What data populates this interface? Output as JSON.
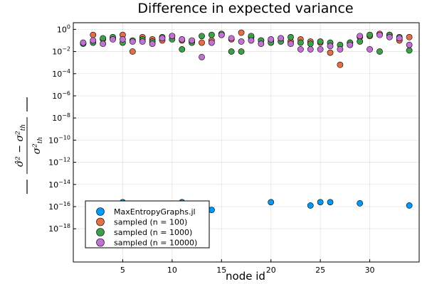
{
  "chart_data": {
    "type": "scatter",
    "title": "Difference in expected variance",
    "xlabel": "node id",
    "ylabel": "",
    "yscale": "log10",
    "xlim": [
      0,
      35
    ],
    "ylim_exp": [
      -21,
      0.6
    ],
    "grid": true,
    "legend_position": "bottom-left",
    "x_ticks": [
      5,
      10,
      15,
      20,
      25,
      30
    ],
    "y_ticks": [
      {
        "exp": 0,
        "label": "10",
        "sup": "0"
      },
      {
        "exp": -2,
        "label": "10",
        "sup": "−2"
      },
      {
        "exp": -4,
        "label": "10",
        "sup": "−4"
      },
      {
        "exp": -6,
        "label": "10",
        "sup": "−6"
      },
      {
        "exp": -8,
        "label": "10",
        "sup": "−8"
      },
      {
        "exp": -10,
        "label": "10",
        "sup": "−10"
      },
      {
        "exp": -12,
        "label": "10",
        "sup": "−12"
      },
      {
        "exp": -14,
        "label": "10",
        "sup": "−14"
      },
      {
        "exp": -16,
        "label": "10",
        "sup": "−16"
      },
      {
        "exp": -18,
        "label": "10",
        "sup": "−18"
      }
    ],
    "series": [
      {
        "name": "MaxEntropyGraphs.jl",
        "color": "#009AFA",
        "points": [
          [
            3,
            -16
          ],
          [
            5,
            -15.6
          ],
          [
            6,
            -16.2
          ],
          [
            7,
            -16.2
          ],
          [
            8,
            -16.2
          ],
          [
            9,
            -16.3
          ],
          [
            11,
            -15.6
          ],
          [
            12,
            -15.8
          ],
          [
            14,
            -16.3
          ],
          [
            20,
            -15.6
          ],
          [
            24,
            -15.9
          ],
          [
            25,
            -15.6
          ],
          [
            26,
            -15.6
          ],
          [
            29,
            -15.7
          ],
          [
            34,
            -15.9
          ]
        ]
      },
      {
        "name": "sampled (n = 100)",
        "color": "#E36F47",
        "points": [
          [
            1,
            -1.25
          ],
          [
            2,
            -0.5
          ],
          [
            3,
            -0.9
          ],
          [
            4,
            -0.8
          ],
          [
            5,
            -0.5
          ],
          [
            6,
            -2
          ],
          [
            7,
            -0.7
          ],
          [
            8,
            -0.9
          ],
          [
            9,
            -1
          ],
          [
            10,
            -0.6
          ],
          [
            11,
            -1
          ],
          [
            12,
            -1.1
          ],
          [
            13,
            -1.2
          ],
          [
            14,
            -1
          ],
          [
            15,
            -0.5
          ],
          [
            16,
            -0.9
          ],
          [
            17,
            -0.3
          ],
          [
            18,
            -0.7
          ],
          [
            19,
            -1
          ],
          [
            20,
            -1
          ],
          [
            21,
            -0.8
          ],
          [
            22,
            -1.1
          ],
          [
            23,
            -0.9
          ],
          [
            24,
            -1.1
          ],
          [
            25,
            -1.2
          ],
          [
            26,
            -2.1
          ],
          [
            27,
            -3.2
          ],
          [
            28,
            -1.2
          ],
          [
            29,
            -0.7
          ],
          [
            30,
            -0.6
          ],
          [
            31,
            -0.4
          ],
          [
            32,
            -0.5
          ],
          [
            33,
            -1
          ],
          [
            34,
            -0.7
          ]
        ]
      },
      {
        "name": "sampled (n = 1000)",
        "color": "#3E9F4A",
        "points": [
          [
            1,
            -1.3
          ],
          [
            2,
            -1.2
          ],
          [
            3,
            -0.8
          ],
          [
            4,
            -0.7
          ],
          [
            5,
            -1.2
          ],
          [
            6,
            -1
          ],
          [
            7,
            -0.9
          ],
          [
            8,
            -1.1
          ],
          [
            9,
            -0.7
          ],
          [
            10,
            -0.9
          ],
          [
            11,
            -1.8
          ],
          [
            12,
            -1.2
          ],
          [
            13,
            -0.6
          ],
          [
            14,
            -0.5
          ],
          [
            15,
            -0.4
          ],
          [
            16,
            -2
          ],
          [
            17,
            -2
          ],
          [
            18,
            -0.6
          ],
          [
            19,
            -1
          ],
          [
            20,
            -1.2
          ],
          [
            21,
            -1.1
          ],
          [
            22,
            -0.7
          ],
          [
            23,
            -1.2
          ],
          [
            24,
            -1.3
          ],
          [
            25,
            -1.1
          ],
          [
            26,
            -1.2
          ],
          [
            27,
            -1.4
          ],
          [
            28,
            -1.2
          ],
          [
            29,
            -1.1
          ],
          [
            30,
            -0.5
          ],
          [
            31,
            -2
          ],
          [
            32,
            -0.5
          ],
          [
            33,
            -0.7
          ],
          [
            34,
            -1.9
          ]
        ]
      },
      {
        "name": "sampled (n = 10000)",
        "color": "#C270D2",
        "points": [
          [
            1,
            -1.2
          ],
          [
            2,
            -1
          ],
          [
            3,
            -1.3
          ],
          [
            4,
            -0.9
          ],
          [
            5,
            -0.9
          ],
          [
            6,
            -1.1
          ],
          [
            7,
            -1.1
          ],
          [
            8,
            -1.3
          ],
          [
            9,
            -0.8
          ],
          [
            10,
            -0.6
          ],
          [
            11,
            -0.9
          ],
          [
            12,
            -1
          ],
          [
            13,
            -2.5
          ],
          [
            14,
            -1.2
          ],
          [
            15,
            -0.5
          ],
          [
            16,
            -0.8
          ],
          [
            17,
            -1.1
          ],
          [
            18,
            -1
          ],
          [
            19,
            -1.3
          ],
          [
            20,
            -0.9
          ],
          [
            21,
            -0.8
          ],
          [
            22,
            -1.3
          ],
          [
            23,
            -1.8
          ],
          [
            24,
            -1.8
          ],
          [
            25,
            -1.8
          ],
          [
            26,
            -1.5
          ],
          [
            27,
            -1.8
          ],
          [
            28,
            -1.4
          ],
          [
            29,
            -0.6
          ],
          [
            30,
            -1.8
          ],
          [
            31,
            -0.5
          ],
          [
            32,
            -0.7
          ],
          [
            33,
            -0.8
          ],
          [
            34,
            -1.4
          ]
        ]
      }
    ]
  }
}
